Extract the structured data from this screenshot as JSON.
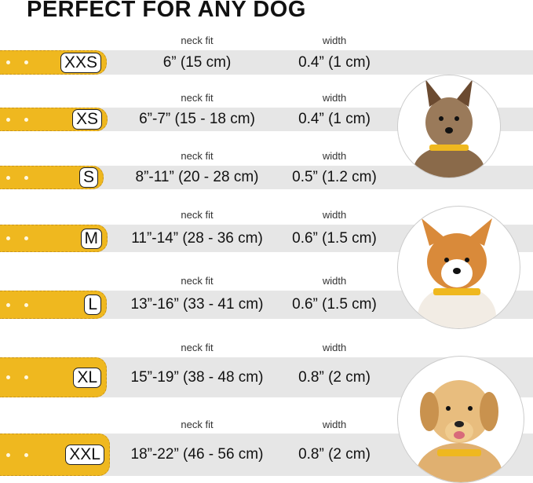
{
  "title": "PERFECT FOR ANY DOG",
  "neck_label": "neck fit",
  "width_label": "width",
  "colors": {
    "collar": "#efb81f",
    "band": "#e6e6e6"
  },
  "rows": [
    {
      "size": "XXS",
      "neck": "6” (15 cm)",
      "width": "0.4” (1 cm)"
    },
    {
      "size": "XS",
      "neck": "6”-7” (15 - 18 cm)",
      "width": "0.4” (1 cm)"
    },
    {
      "size": "S",
      "neck": "8”-11” (20 - 28 cm)",
      "width": "0.5” (1.2 cm)"
    },
    {
      "size": "M",
      "neck": "11”-14” (28 - 36 cm)",
      "width": "0.6” (1.5 cm)"
    },
    {
      "size": "L",
      "neck": "13”-16” (33 - 41 cm)",
      "width": "0.6” (1.5 cm)"
    },
    {
      "size": "XL",
      "neck": "15”-19” (38 - 48 cm)",
      "width": "0.8” (2 cm)"
    },
    {
      "size": "XXL",
      "neck": "18”-22” (46 - 56 cm)",
      "width": "0.8” (2 cm)"
    }
  ]
}
